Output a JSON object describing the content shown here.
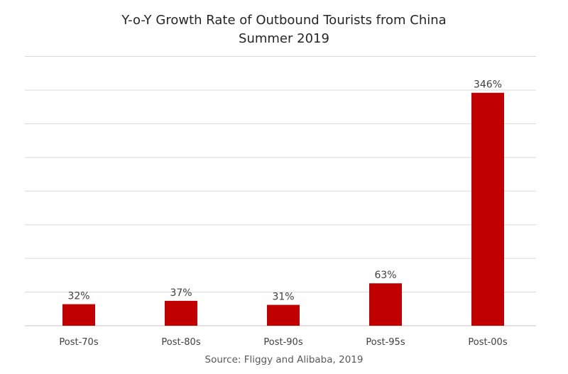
{
  "chart_data": {
    "type": "bar",
    "title": "Y-o-Y Growth Rate of Outbound Tourists from China",
    "subtitle": "Summer 2019",
    "categories": [
      "Post-70s",
      "Post-80s",
      "Post-90s",
      "Post-95s",
      "Post-00s"
    ],
    "values": [
      32,
      37,
      31,
      63,
      346
    ],
    "data_labels": [
      "32%",
      "37%",
      "31%",
      "63%",
      "346%"
    ],
    "xlabel": "",
    "ylabel": "",
    "ylim": [
      0,
      400
    ],
    "ytick_step": 50,
    "grid": true,
    "y_axis_visible": false,
    "legend": "none",
    "source": "Source: Fliggy and Alibaba, 2019",
    "bar_color": "#C00000",
    "grid_color": "#D9D9D9"
  }
}
